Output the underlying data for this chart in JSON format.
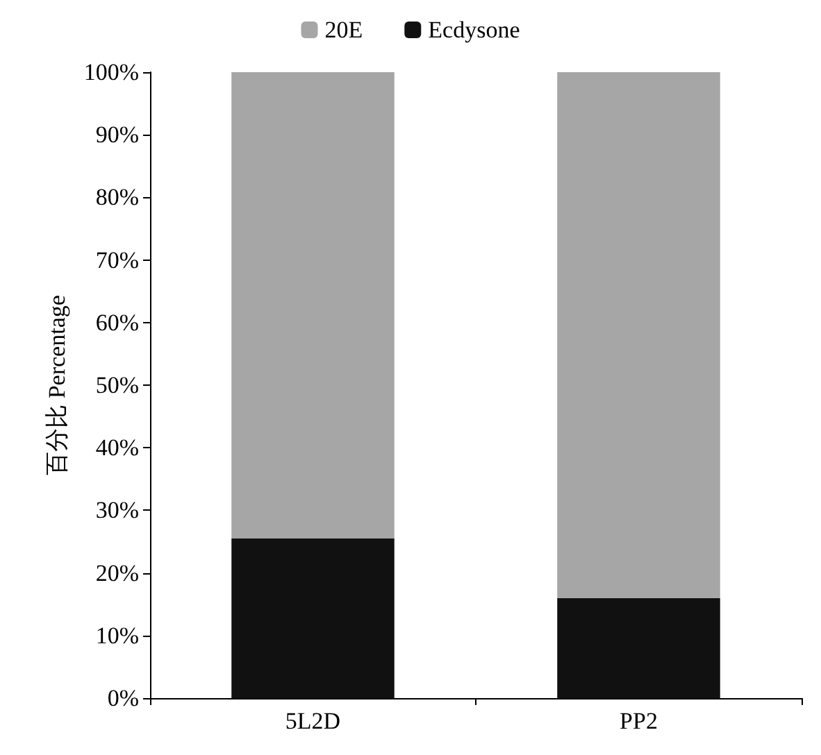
{
  "chart_data": {
    "type": "bar",
    "stacked": true,
    "ylabel": "百分比 Percentage",
    "categories": [
      "5L2D",
      "PP2"
    ],
    "series": [
      {
        "name": "Ecdysone",
        "color": "#111111",
        "values": [
          25.5,
          16
        ]
      },
      {
        "name": "20E",
        "color": "#a6a6a6",
        "values": [
          74.5,
          84
        ]
      }
    ],
    "ylim": [
      0,
      100
    ],
    "yticks": [
      {
        "value": 0,
        "label": "0%"
      },
      {
        "value": 10,
        "label": "10%"
      },
      {
        "value": 20,
        "label": "20%"
      },
      {
        "value": 30,
        "label": "30%"
      },
      {
        "value": 40,
        "label": "40%"
      },
      {
        "value": 50,
        "label": "50%"
      },
      {
        "value": 60,
        "label": "60%"
      },
      {
        "value": 70,
        "label": "70%"
      },
      {
        "value": 80,
        "label": "80%"
      },
      {
        "value": 90,
        "label": "90%"
      },
      {
        "value": 100,
        "label": "100%"
      }
    ],
    "grid": false,
    "legend": "top"
  }
}
